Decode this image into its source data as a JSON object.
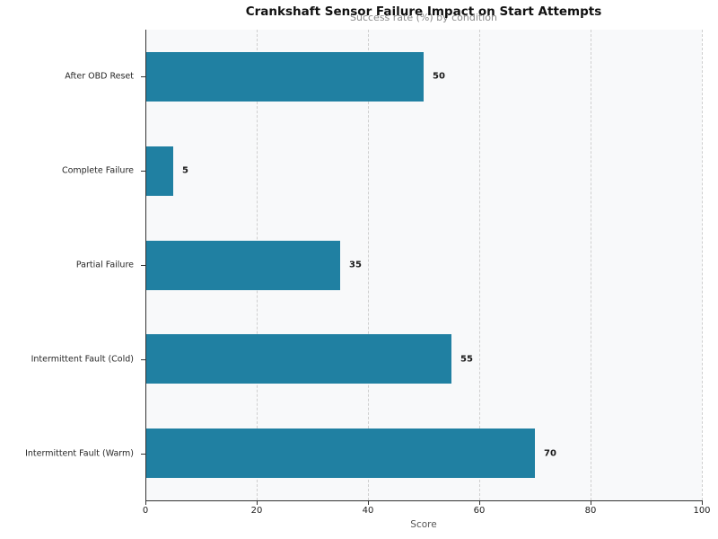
{
  "chart_data": {
    "type": "bar",
    "orientation": "horizontal",
    "title": "Crankshaft Sensor Failure Impact on Start Attempts",
    "subtitle": "Success rate (%) by condition",
    "categories": [
      "After OBD Reset",
      "Complete Failure",
      "Partial Failure",
      "Intermittent Fault (Cold)",
      "Intermittent Fault (Warm)"
    ],
    "values": [
      50,
      5,
      35,
      55,
      70
    ],
    "value_labels": [
      "50",
      "5",
      "35",
      "55",
      "70"
    ],
    "xlabel": "Score",
    "xlim": [
      0,
      100
    ],
    "xticks": [
      0,
      20,
      40,
      60,
      80,
      100
    ],
    "grid": "vertical-dashed",
    "legend": "none",
    "colors": {
      "bar": "#2080A2",
      "plot_background": "#f8f9fa",
      "figure_background": "#ffffff",
      "grid": "#cfcfcf",
      "spine": "#333333",
      "title_text": "#111111",
      "subtitle_text": "#8a8a8a",
      "value_label_text": "#1a1a1a",
      "tick_label_text": "#262626",
      "axis_label_text": "#555555"
    }
  }
}
